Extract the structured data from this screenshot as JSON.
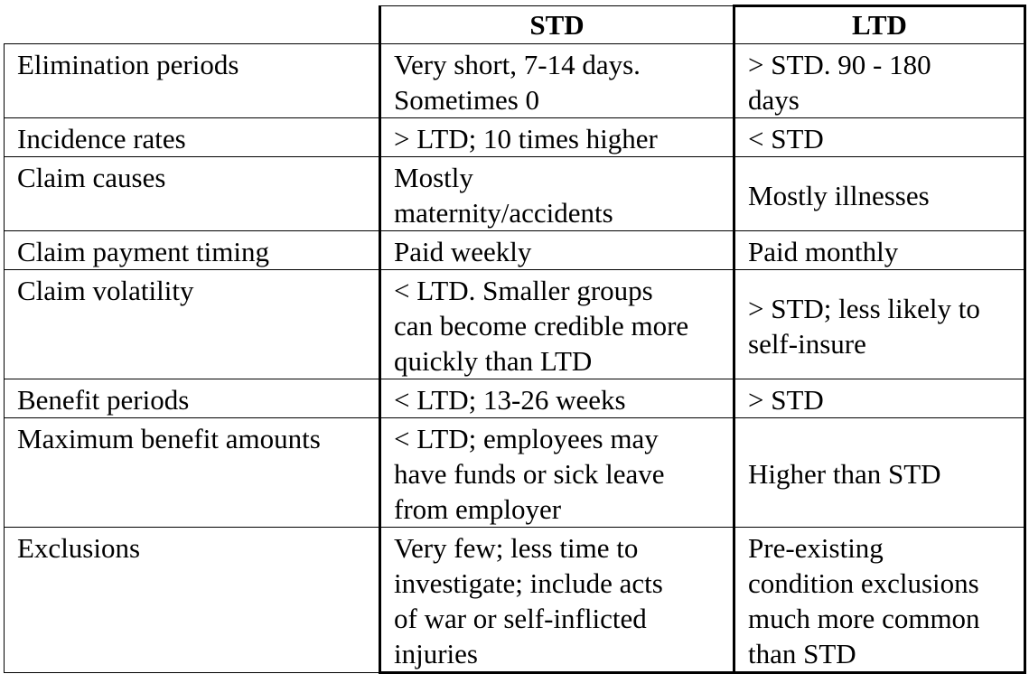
{
  "table": {
    "headers": [
      "",
      "STD",
      "LTD"
    ],
    "rows": [
      {
        "label": "Elimination periods",
        "std": "Very short, 7-14 days.\nSometimes 0",
        "ltd": "> STD. 90 - 180\ndays"
      },
      {
        "label": "Incidence rates",
        "std": "> LTD; 10 times higher",
        "ltd": "< STD"
      },
      {
        "label": "Claim causes",
        "std": "Mostly\nmaternity/accidents",
        "ltd": "Mostly illnesses"
      },
      {
        "label": "Claim payment timing",
        "std": "Paid weekly",
        "ltd": "Paid monthly"
      },
      {
        "label": "Claim volatility",
        "std": "< LTD. Smaller groups\ncan become credible more\nquickly than LTD",
        "ltd": "> STD; less likely to\nself-insure"
      },
      {
        "label": "Benefit periods",
        "std": "< LTD; 13-26 weeks",
        "ltd": "> STD"
      },
      {
        "label": "Maximum benefit amounts",
        "std": "< LTD; employees may\nhave funds or sick leave\nfrom employer",
        "ltd": "Higher than STD"
      },
      {
        "label": "Exclusions",
        "std": "Very few; less time to\ninvestigate; include acts\nof war or self-inflicted\ninjuries",
        "ltd": "Pre-existing\ncondition exclusions\nmuch more common\nthan STD"
      }
    ]
  }
}
